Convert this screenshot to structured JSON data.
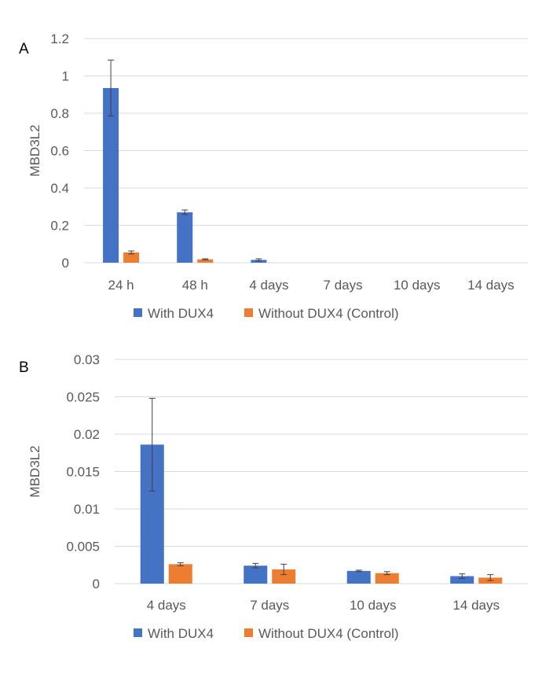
{
  "chart_data": [
    {
      "panel": "A",
      "type": "bar",
      "title": "",
      "xlabel": "",
      "ylabel": "MBD3L2",
      "ylim": [
        0,
        1.2
      ],
      "ytick_values": [
        0,
        0.2,
        0.4,
        0.6,
        0.8,
        1,
        1.2
      ],
      "ytick_labels": [
        "0",
        "0.2",
        "0.4",
        "0.6",
        "0.8",
        "1",
        "1.2"
      ],
      "categories": [
        "24 h",
        "48 h",
        "4 days",
        "7 days",
        "10 days",
        "14 days"
      ],
      "grid": true,
      "legend_position": "bottom",
      "series": [
        {
          "name": "With DUX4",
          "color": "#4472c4",
          "values": [
            0.935,
            0.27,
            0.015,
            0,
            0,
            0
          ],
          "errors": [
            0.15,
            0.012,
            0.006,
            0,
            0,
            0
          ]
        },
        {
          "name": "Without DUX4 (Control)",
          "color": "#ed7d31",
          "values": [
            0.055,
            0.018,
            0,
            0,
            0,
            0
          ],
          "errors": [
            0.008,
            0.003,
            0,
            0,
            0,
            0
          ]
        }
      ]
    },
    {
      "panel": "B",
      "type": "bar",
      "title": "",
      "xlabel": "",
      "ylabel": "MBD3L2",
      "ylim": [
        0,
        0.03
      ],
      "ytick_values": [
        0,
        0.005,
        0.01,
        0.015,
        0.02,
        0.025,
        0.03
      ],
      "ytick_labels": [
        "0",
        "0.005",
        "0.01",
        "0.015",
        "0.02",
        "0.025",
        "0.03"
      ],
      "categories": [
        "4 days",
        "7 days",
        "10 days",
        "14 days"
      ],
      "grid": true,
      "legend_position": "bottom",
      "series": [
        {
          "name": "With DUX4",
          "color": "#4472c4",
          "values": [
            0.0186,
            0.0024,
            0.0017,
            0.001
          ],
          "errors": [
            0.0062,
            0.0003,
            0.0001,
            0.0003
          ]
        },
        {
          "name": "Without DUX4 (Control)",
          "color": "#ed7d31",
          "values": [
            0.0026,
            0.0019,
            0.0014,
            0.0008
          ],
          "errors": [
            0.0002,
            0.0007,
            0.0002,
            0.0004
          ]
        }
      ]
    }
  ]
}
